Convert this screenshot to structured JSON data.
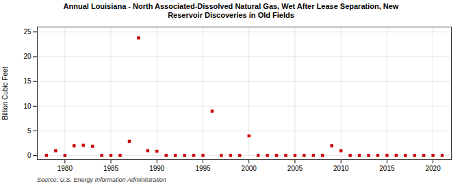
{
  "chart_data": {
    "type": "scatter",
    "title": "Annual Louisiana - North Associated-Dissolved Natural Gas, Wet After Lease Separation, New\nReservoir Discoveries in Old Fields",
    "ylabel": "Billion Cubic Feet",
    "source": "Source: U.S. Energy Information Administration",
    "color": "#cc0000",
    "marker": "square",
    "grid": true,
    "xlim": [
      1977,
      2022
    ],
    "ylim": [
      -0.8,
      26
    ],
    "xticks": [
      1980,
      1985,
      1990,
      1995,
      2000,
      2005,
      2010,
      2015,
      2020
    ],
    "yticks": [
      0,
      5,
      10,
      15,
      20,
      25
    ],
    "x": [
      1978,
      1979,
      1980,
      1981,
      1982,
      1983,
      1984,
      1985,
      1986,
      1987,
      1988,
      1989,
      1990,
      1991,
      1992,
      1993,
      1994,
      1995,
      1996,
      1997,
      1998,
      1999,
      2000,
      2001,
      2002,
      2003,
      2004,
      2005,
      2006,
      2007,
      2008,
      2009,
      2010,
      2011,
      2012,
      2013,
      2014,
      2015,
      2016,
      2017,
      2018,
      2019,
      2020,
      2021
    ],
    "values": [
      0.05,
      1.0,
      0.05,
      2.0,
      2.1,
      1.9,
      0.05,
      0.05,
      0.05,
      2.9,
      23.8,
      1.0,
      0.9,
      0.05,
      0.05,
      0.05,
      0.05,
      0.05,
      9.0,
      0.05,
      0.05,
      0.05,
      4.0,
      0.05,
      0.05,
      0.05,
      0.05,
      0.05,
      0.05,
      0.05,
      0.05,
      2.0,
      1.0,
      0.05,
      0.05,
      0.05,
      0.05,
      0.05,
      0.05,
      0.05,
      0.05,
      0.05,
      0.05,
      0.05
    ]
  }
}
